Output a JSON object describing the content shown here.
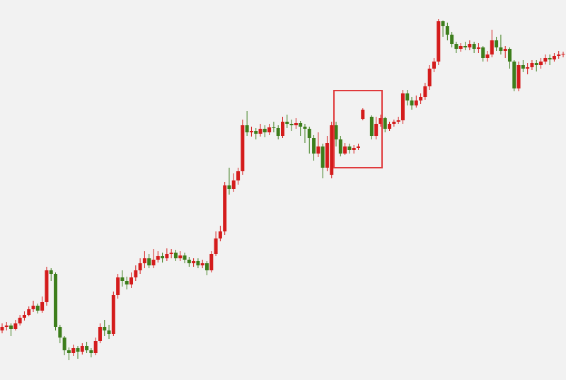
{
  "chart_data": {
    "type": "candlestick",
    "up_color": "#d41c1c",
    "down_color": "#3d7e1c",
    "ylim": [
      0,
      537
    ],
    "open": [
      70,
      75,
      77,
      72,
      80,
      88,
      92,
      100,
      105,
      98,
      110,
      155,
      150,
      75,
      60,
      42,
      38,
      45,
      40,
      48,
      42,
      38,
      55,
      75,
      70,
      65,
      120,
      145,
      140,
      135,
      145,
      155,
      165,
      172,
      162,
      170,
      175,
      172,
      178,
      180,
      172,
      176,
      170,
      165,
      168,
      162,
      165,
      155,
      178,
      200,
      210,
      275,
      270,
      282,
      295,
      360,
      350,
      352,
      348,
      355,
      350,
      357,
      356,
      345,
      365,
      362,
      360,
      363,
      358,
      355,
      342,
      320,
      330,
      300,
      290,
      360,
      340,
      320,
      330,
      325,
      328,
      369,
      null,
      372,
      345,
      362,
      370,
      355,
      362,
      365,
      367,
      405,
      395,
      388,
      395,
      400,
      415,
      440,
      450,
      507,
      500,
      488,
      475,
      468,
      472,
      470,
      475,
      468,
      470,
      455,
      460,
      480,
      470,
      465,
      468,
      450,
      412,
      445,
      440,
      442,
      448,
      445,
      450,
      455,
      453,
      458,
      460
    ],
    "high": [
      80,
      82,
      80,
      85,
      92,
      97,
      104,
      112,
      108,
      118,
      160,
      158,
      152,
      78,
      62,
      46,
      50,
      48,
      52,
      54,
      45,
      60,
      80,
      85,
      78,
      125,
      150,
      155,
      146,
      152,
      162,
      172,
      182,
      178,
      185,
      182,
      180,
      186,
      185,
      184,
      182,
      180,
      174,
      172,
      172,
      170,
      168,
      182,
      210,
      218,
      280,
      300,
      292,
      300,
      368,
      380,
      358,
      356,
      362,
      360,
      362,
      365,
      360,
      372,
      375,
      368,
      370,
      366,
      362,
      358,
      346,
      350,
      334,
      345,
      365,
      365,
      345,
      335,
      334,
      332,
      334,
      384,
      null,
      374,
      372,
      375,
      372,
      365,
      368,
      372,
      410,
      410,
      400,
      402,
      405,
      420,
      445,
      455,
      510,
      508,
      505,
      492,
      478,
      476,
      478,
      480,
      478,
      476,
      472,
      465,
      495,
      485,
      488,
      472,
      470,
      452,
      450,
      452,
      448,
      452,
      452,
      455,
      460,
      460,
      462,
      465,
      464
    ],
    "low": [
      66,
      70,
      62,
      70,
      77,
      84,
      90,
      96,
      94,
      95,
      105,
      140,
      70,
      52,
      35,
      28,
      34,
      30,
      36,
      38,
      32,
      35,
      52,
      62,
      58,
      62,
      115,
      132,
      128,
      130,
      140,
      150,
      158,
      158,
      158,
      166,
      166,
      168,
      172,
      168,
      168,
      165,
      160,
      160,
      158,
      158,
      148,
      152,
      175,
      196,
      205,
      262,
      266,
      276,
      290,
      345,
      344,
      340,
      344,
      343,
      346,
      350,
      340,
      342,
      356,
      352,
      355,
      345,
      335,
      320,
      310,
      315,
      285,
      295,
      285,
      330,
      316,
      318,
      320,
      320,
      325,
      367,
      null,
      340,
      340,
      358,
      350,
      352,
      358,
      362,
      362,
      388,
      382,
      385,
      390,
      396,
      410,
      435,
      445,
      485,
      480,
      470,
      462,
      464,
      466,
      466,
      462,
      462,
      450,
      450,
      456,
      465,
      460,
      455,
      440,
      408,
      408,
      435,
      432,
      438,
      436,
      440,
      446,
      445,
      450,
      454,
      456
    ],
    "close": [
      75,
      77,
      72,
      80,
      88,
      92,
      100,
      105,
      98,
      110,
      155,
      150,
      75,
      60,
      42,
      38,
      45,
      40,
      48,
      42,
      38,
      55,
      75,
      70,
      65,
      120,
      145,
      140,
      135,
      145,
      155,
      165,
      172,
      162,
      170,
      175,
      172,
      178,
      180,
      172,
      176,
      170,
      165,
      168,
      162,
      165,
      155,
      178,
      200,
      210,
      275,
      270,
      282,
      295,
      360,
      350,
      352,
      348,
      355,
      350,
      357,
      356,
      345,
      365,
      362,
      360,
      363,
      358,
      355,
      342,
      320,
      330,
      300,
      335,
      360,
      340,
      320,
      330,
      325,
      328,
      330,
      382,
      null,
      345,
      362,
      370,
      355,
      362,
      365,
      367,
      405,
      395,
      388,
      395,
      400,
      415,
      440,
      450,
      507,
      500,
      488,
      475,
      468,
      472,
      470,
      475,
      468,
      470,
      455,
      460,
      480,
      470,
      465,
      468,
      450,
      412,
      445,
      440,
      442,
      448,
      445,
      450,
      455,
      453,
      458,
      460,
      461
    ]
  }
}
